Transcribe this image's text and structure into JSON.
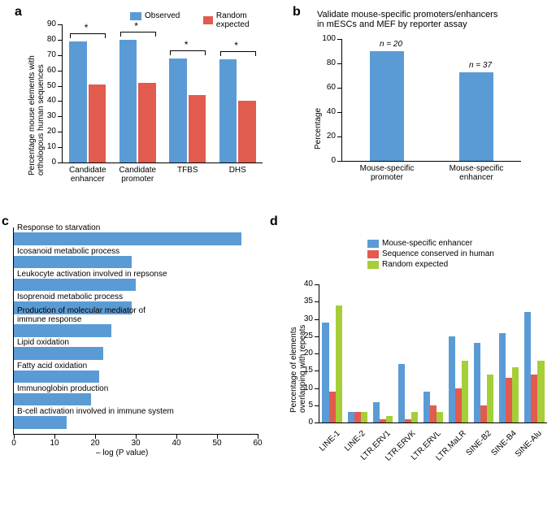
{
  "colors": {
    "blue": "#5b9bd5",
    "red": "#e15b4e",
    "green": "#a6ce39",
    "axis": "#000000",
    "bg": "#ffffff"
  },
  "panel_a": {
    "label": "a",
    "type": "grouped-bar",
    "ylabel": "Percentage mouse elements with\northologous human sequences",
    "ylim": [
      0,
      90
    ],
    "ytick_step": 10,
    "categories": [
      "Candidate\nenhancer",
      "Candidate\npromoter",
      "TFBS",
      "DHS"
    ],
    "series": [
      {
        "name": "Observed",
        "color": "#5b9bd5",
        "values": [
          79,
          80,
          68,
          67
        ]
      },
      {
        "name": "Random expected",
        "color": "#e15b4e",
        "values": [
          51,
          52,
          44,
          40
        ]
      }
    ],
    "sig_marks": [
      "*",
      "*",
      "*",
      "*"
    ],
    "bar_width": 0.35
  },
  "panel_b": {
    "label": "b",
    "type": "bar",
    "title": "Validate mouse-specific promoters/enhancers\nin mESCs and MEF by reporter assay",
    "ylabel": "Percentage",
    "ylim": [
      0,
      100
    ],
    "ytick_step": 20,
    "categories": [
      "Mouse-specific\npromoter",
      "Mouse-specific\nenhancer"
    ],
    "values": [
      90,
      73
    ],
    "n_labels": [
      "n = 20",
      "n = 37"
    ],
    "bar_color": "#5b9bd5",
    "bar_width": 0.38
  },
  "panel_c": {
    "label": "c",
    "type": "hbar",
    "xlabel": "– log (P value)",
    "xlim": [
      0,
      60
    ],
    "xtick_step": 10,
    "categories": [
      "Response to starvation",
      "Icosanoid metabolic process",
      "Leukocyte activation involved in repsonse",
      "Isoprenoid metabolic process",
      "Production of molecular mediator of\nimmune response",
      "Lipid oxidation",
      "Fatty acid oxidation",
      "Immunoglobin production",
      "B-cell activation involved in immune system"
    ],
    "values": [
      56,
      29,
      30,
      29,
      24,
      22,
      21,
      19,
      13
    ],
    "bar_color": "#5b9bd5",
    "bar_height": 0.55
  },
  "panel_d": {
    "label": "d",
    "type": "grouped-bar",
    "ylabel": "Percentage of elements\noverlapping with repeats",
    "ylim": [
      0,
      40
    ],
    "ytick_step": 5,
    "categories": [
      "LINE-1",
      "LINE-2",
      "LTR.ERV1",
      "LTR.ERVK",
      "LTR.ERVL",
      "LTR.MaLR",
      "SINE-B2",
      "SINE-B4",
      "SINE-Alu"
    ],
    "series": [
      {
        "name": "Mouse-specific enhancer",
        "color": "#5b9bd5",
        "values": [
          29,
          3,
          6,
          17,
          9,
          25,
          23,
          26,
          32
        ]
      },
      {
        "name": "Sequence conserved in human",
        "color": "#e15b4e",
        "values": [
          9,
          3,
          1,
          1,
          5,
          10,
          5,
          13,
          14
        ]
      },
      {
        "name": "Random expected",
        "color": "#a6ce39",
        "values": [
          34,
          3,
          2,
          3,
          3,
          18,
          14,
          16,
          18
        ]
      }
    ],
    "bar_width": 0.26
  }
}
